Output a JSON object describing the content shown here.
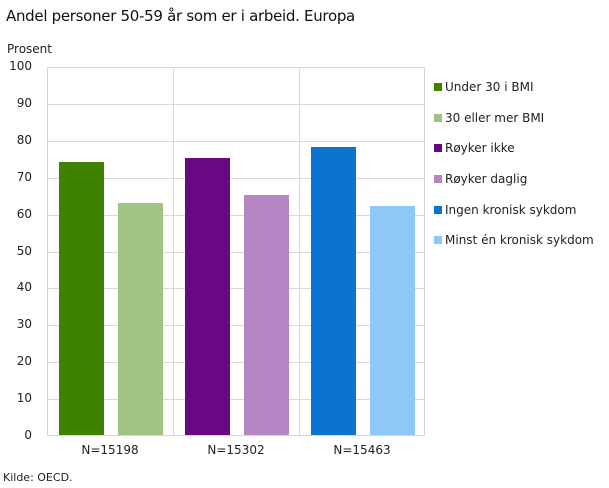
{
  "title": "Andel personer 50-59 år som er i arbeid. Europa",
  "source": "Kilde: OECD.",
  "chart_data": {
    "type": "bar",
    "title": "Andel personer 50-59 år som er i arbeid. Europa",
    "ylabel": "Prosent",
    "xlabel": "",
    "ylim": [
      0,
      100
    ],
    "yticks": [
      0,
      10,
      20,
      30,
      40,
      50,
      60,
      70,
      80,
      90,
      100
    ],
    "grid": true,
    "legend_position": "right",
    "categories": [
      "N=15198",
      "N=15302",
      "N=15463"
    ],
    "series": [
      {
        "name": "Under 30 i BMI",
        "color": "#3f8200",
        "category": 0,
        "value": 74
      },
      {
        "name": "30 eller mer BMI",
        "color": "#a0c483",
        "category": 0,
        "value": 63
      },
      {
        "name": "Røyker ikke",
        "color": "#690884",
        "category": 1,
        "value": 75
      },
      {
        "name": "Røyker daglig",
        "color": "#b686c4",
        "category": 1,
        "value": 65
      },
      {
        "name": "Ingen kronisk sykdom",
        "color": "#0a74d0",
        "category": 2,
        "value": 78
      },
      {
        "name": "Minst én kronisk sykdom",
        "color": "#8fc8f8",
        "category": 2,
        "value": 62
      }
    ],
    "source": "Kilde: OECD."
  }
}
